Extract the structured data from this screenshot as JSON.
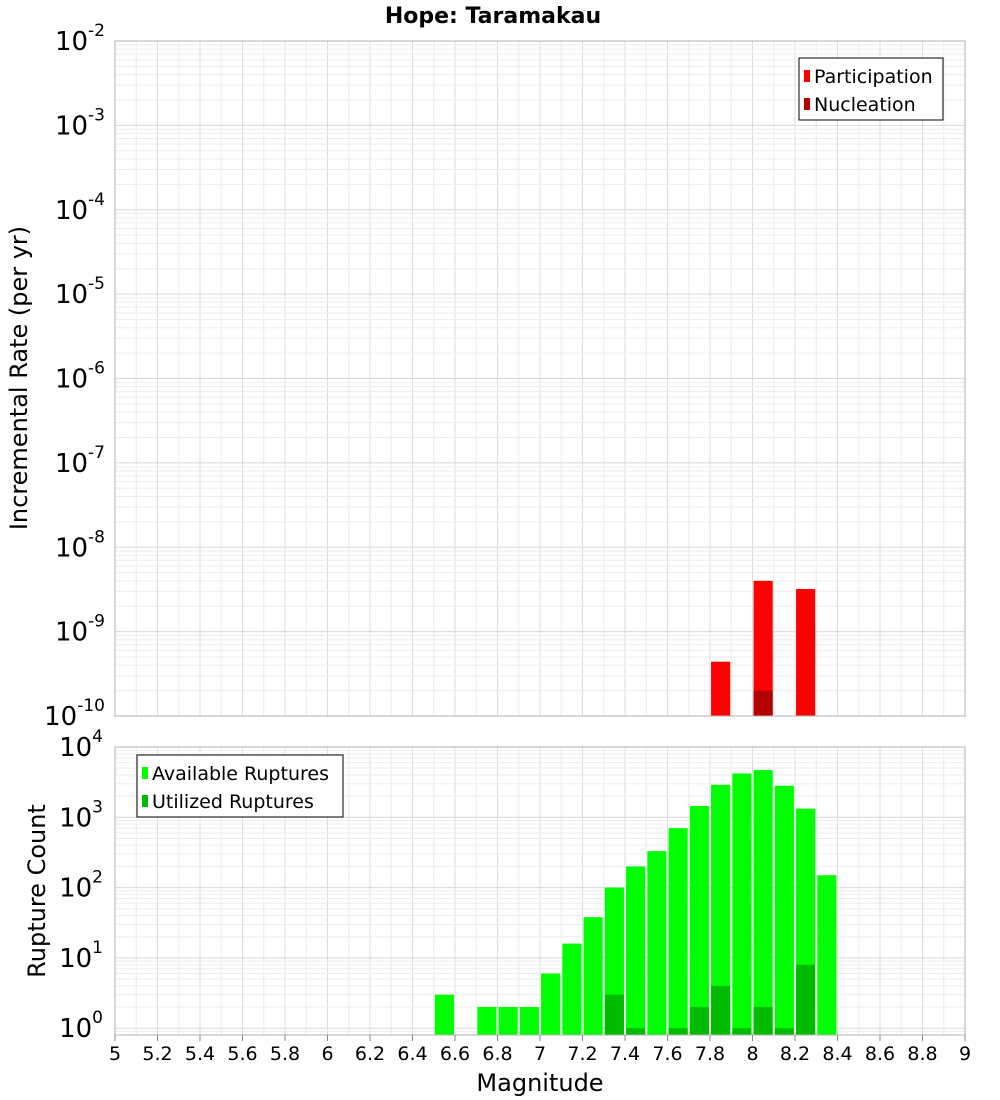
{
  "chart_data": [
    {
      "type": "bar",
      "title": "Hope: Taramakau",
      "ylabel": "Incremental Rate (per yr)",
      "xlabel": "",
      "y_scale": "log",
      "ylim": [
        1e-10,
        0.01
      ],
      "xlim": [
        5,
        9
      ],
      "y_ticks": [
        {
          "base": "10",
          "exp": "-10"
        },
        {
          "base": "10",
          "exp": "-9"
        },
        {
          "base": "10",
          "exp": "-8"
        },
        {
          "base": "10",
          "exp": "-7"
        },
        {
          "base": "10",
          "exp": "-6"
        },
        {
          "base": "10",
          "exp": "-5"
        },
        {
          "base": "10",
          "exp": "-4"
        },
        {
          "base": "10",
          "exp": "-3"
        },
        {
          "base": "10",
          "exp": "-2"
        }
      ],
      "legend": {
        "placement": "top-right"
      },
      "series": [
        {
          "name": "Participation",
          "color": "#ff0000",
          "x": [
            7.85,
            8.05,
            8.25
          ],
          "values": [
            4.4e-10,
            4e-09,
            3.2e-09
          ]
        },
        {
          "name": "Nucleation",
          "color": "#b40000",
          "x": [
            8.05
          ],
          "values": [
            2e-10
          ]
        }
      ],
      "grid": true
    },
    {
      "type": "bar",
      "title": "",
      "ylabel": "Rupture Count",
      "xlabel": "Magnitude",
      "y_scale": "log",
      "ylim": [
        0.8,
        10000
      ],
      "xlim": [
        5,
        9
      ],
      "x_ticks": [
        "5",
        "5.2",
        "5.4",
        "5.6",
        "5.8",
        "6",
        "6.2",
        "6.4",
        "6.6",
        "6.8",
        "7",
        "7.2",
        "7.4",
        "7.6",
        "7.8",
        "8",
        "8.2",
        "8.4",
        "8.6",
        "8.8",
        "9"
      ],
      "y_ticks": [
        {
          "base": "10",
          "exp": "0"
        },
        {
          "base": "10",
          "exp": "1"
        },
        {
          "base": "10",
          "exp": "2"
        },
        {
          "base": "10",
          "exp": "3"
        },
        {
          "base": "10",
          "exp": "4"
        }
      ],
      "legend": {
        "placement": "top-left"
      },
      "series": [
        {
          "name": "Available Ruptures",
          "color": "#00ff00",
          "x": [
            6.55,
            6.75,
            6.85,
            6.95,
            7.05,
            7.15,
            7.25,
            7.35,
            7.45,
            7.55,
            7.65,
            7.75,
            7.85,
            7.95,
            8.05,
            8.15,
            8.25,
            8.35
          ],
          "values": [
            3,
            2,
            2,
            2,
            6,
            16,
            38,
            100,
            200,
            330,
            700,
            1450,
            2900,
            4200,
            4700,
            2800,
            1330,
            150
          ]
        },
        {
          "name": "Utilized Ruptures",
          "color": "#00bb00",
          "x": [
            7.35,
            7.45,
            7.65,
            7.75,
            7.85,
            7.95,
            8.05,
            8.15,
            8.25
          ],
          "values": [
            3,
            1,
            1,
            2,
            4,
            1,
            2,
            1,
            8
          ]
        }
      ],
      "grid": true
    }
  ]
}
